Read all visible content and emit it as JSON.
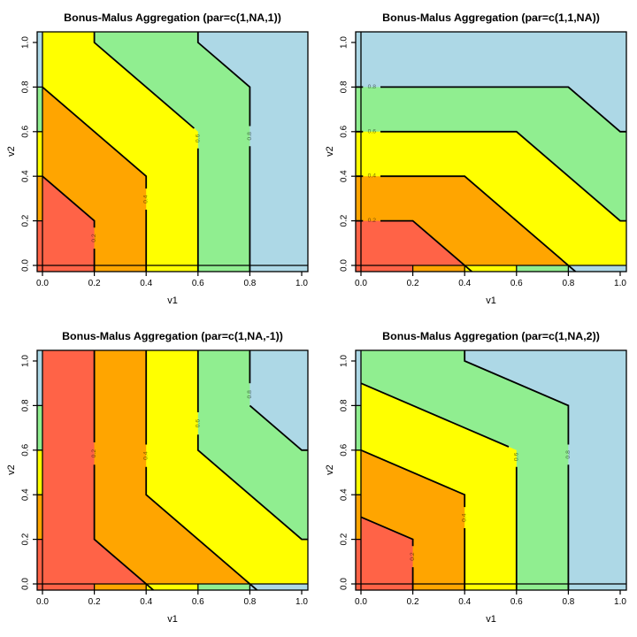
{
  "chart_data": {
    "type": "filled-contour-grid",
    "grid": [
      2,
      2
    ],
    "levels": [
      0.2,
      0.4,
      0.6,
      0.8
    ],
    "colors": {
      "red": "#FF6347",
      "orange": "#FFA500",
      "yellow": "#FFFF00",
      "green": "#90EE90",
      "blue": "#ADD8E6"
    },
    "band_meaning": "aggregated value: <0.2 red, 0.2-0.4 orange, 0.4-0.6 yellow, 0.6-0.8 green, >0.8 blue",
    "axis": {
      "xlabel": "v1",
      "ylabel": "v2",
      "xticks": [
        "0.0",
        "0.2",
        "0.4",
        "0.6",
        "0.8",
        "1.0"
      ],
      "yticks": [
        "0.0",
        "0.2",
        "0.4",
        "0.6",
        "0.8",
        "1.0"
      ],
      "tick_values": [
        0,
        0.2,
        0.4,
        0.6,
        0.8,
        1.0
      ],
      "xlim": [
        0,
        1
      ],
      "ylim": [
        0,
        1
      ]
    },
    "edge_strips": {
      "left_strip_values": "v2",
      "bottom_strip_values": "v1",
      "order": [
        "red",
        "orange",
        "yellow",
        "green",
        "blue"
      ],
      "breaks": [
        -0.1,
        0.2,
        0.4,
        0.6,
        0.8,
        1.1
      ]
    },
    "frame_lines": [
      [
        [
          0,
          -0.1
        ],
        [
          0,
          1.1
        ]
      ],
      [
        [
          -0.1,
          0
        ],
        [
          1.1,
          0
        ]
      ],
      [
        [
          -0.1,
          0.2
        ],
        [
          0,
          0.2
        ]
      ],
      [
        [
          -0.1,
          0.4
        ],
        [
          0,
          0.4
        ]
      ],
      [
        [
          -0.1,
          0.6
        ],
        [
          0,
          0.6
        ]
      ],
      [
        [
          -0.1,
          0.8
        ],
        [
          0,
          0.8
        ]
      ],
      [
        [
          0.2,
          0
        ],
        [
          0.2,
          -0.1
        ]
      ],
      [
        [
          0.4,
          0
        ],
        [
          0.4,
          -0.1
        ]
      ],
      [
        [
          0.6,
          0
        ],
        [
          0.6,
          -0.1
        ]
      ],
      [
        [
          0.8,
          0
        ],
        [
          0.8,
          -0.1
        ]
      ]
    ],
    "panels": [
      {
        "title": "Bonus-Malus Aggregation (par=c(1,NA,1))",
        "par": "c(1,NA,1)",
        "regions": [
          {
            "color": "green",
            "pts": [
              [
                0.6,
                1.1
              ],
              [
                0.6,
                1.0
              ],
              [
                0.8,
                0.8
              ],
              [
                0.8,
                -0.1
              ],
              [
                -0.1,
                -0.1
              ],
              [
                -0.1,
                1.1
              ]
            ]
          },
          {
            "color": "yellow",
            "pts": [
              [
                0.2,
                1.1
              ],
              [
                0.2,
                1.0
              ],
              [
                0.6,
                0.6
              ],
              [
                0.6,
                -0.1
              ],
              [
                -0.1,
                -0.1
              ],
              [
                -0.1,
                1.1
              ]
            ]
          },
          {
            "color": "orange",
            "pts": [
              [
                -0.1,
                0.8
              ],
              [
                0,
                0.8
              ],
              [
                0.4,
                0.4
              ],
              [
                0.4,
                -0.1
              ],
              [
                -0.1,
                -0.1
              ]
            ]
          },
          {
            "color": "red",
            "pts": [
              [
                -0.1,
                0.4
              ],
              [
                0,
                0.4
              ],
              [
                0.2,
                0.2
              ],
              [
                0.2,
                -0.1
              ],
              [
                -0.1,
                -0.1
              ]
            ]
          }
        ],
        "lines": [
          [
            [
              0,
              0.4
            ],
            [
              0.2,
              0.2
            ],
            [
              0.2,
              0.17
            ]
          ],
          [
            [
              0.2,
              0.075
            ],
            [
              0.2,
              -0.1
            ]
          ],
          [
            [
              0,
              0.8
            ],
            [
              0.4,
              0.4
            ],
            [
              0.4,
              0.345
            ]
          ],
          [
            [
              0.4,
              0.25
            ],
            [
              0.4,
              -0.1
            ]
          ],
          [
            [
              0.2,
              1.1
            ],
            [
              0.2,
              1.0
            ],
            [
              0.585,
              0.615
            ]
          ],
          [
            [
              0.6,
              0.525
            ],
            [
              0.6,
              -0.1
            ]
          ],
          [
            [
              0.6,
              1.1
            ],
            [
              0.6,
              1.0
            ],
            [
              0.8,
              0.8
            ],
            [
              0.8,
              0.625
            ]
          ],
          [
            [
              0.8,
              0.535
            ],
            [
              0.8,
              -0.1
            ]
          ]
        ],
        "labels": [
          {
            "t": "0.2",
            "x": 0.2,
            "y": 0.123,
            "vert": true
          },
          {
            "t": "0.4",
            "x": 0.4,
            "y": 0.297,
            "vert": true
          },
          {
            "t": "0.6",
            "x": 0.6,
            "y": 0.57,
            "vert": true
          },
          {
            "t": "0.8",
            "x": 0.8,
            "y": 0.58,
            "vert": true
          }
        ]
      },
      {
        "title": "Bonus-Malus Aggregation (par=c(1,1,NA))",
        "par": "c(1,1,NA)",
        "regions": [
          {
            "color": "green",
            "pts": [
              [
                -0.1,
                0.8
              ],
              [
                0.8,
                0.8
              ],
              [
                1.0,
                0.6
              ],
              [
                1.1,
                0.6
              ],
              [
                1.1,
                -0.1
              ],
              [
                -0.1,
                -0.1
              ]
            ]
          },
          {
            "color": "yellow",
            "pts": [
              [
                -0.1,
                0.6
              ],
              [
                0.6,
                0.6
              ],
              [
                1.0,
                0.2
              ],
              [
                1.1,
                0.2
              ],
              [
                1.1,
                -0.1
              ],
              [
                -0.1,
                -0.1
              ]
            ]
          },
          {
            "color": "orange",
            "pts": [
              [
                -0.1,
                0.4
              ],
              [
                0.4,
                0.4
              ],
              [
                0.9,
                -0.1
              ],
              [
                -0.1,
                -0.1
              ]
            ]
          },
          {
            "color": "red",
            "pts": [
              [
                -0.1,
                0.2
              ],
              [
                0.2,
                0.2
              ],
              [
                0.5,
                -0.1
              ],
              [
                -0.1,
                -0.1
              ]
            ]
          }
        ],
        "lines": [
          [
            [
              -0.1,
              0.2
            ],
            [
              0.008,
              0.2
            ]
          ],
          [
            [
              0.075,
              0.2
            ],
            [
              0.2,
              0.2
            ],
            [
              0.5,
              -0.1
            ]
          ],
          [
            [
              -0.1,
              0.4
            ],
            [
              0.008,
              0.4
            ]
          ],
          [
            [
              0.075,
              0.4
            ],
            [
              0.4,
              0.4
            ],
            [
              0.9,
              -0.1
            ]
          ],
          [
            [
              -0.1,
              0.6
            ],
            [
              0.008,
              0.6
            ]
          ],
          [
            [
              0.075,
              0.6
            ],
            [
              0.6,
              0.6
            ],
            [
              1.0,
              0.2
            ],
            [
              1.1,
              0.2
            ]
          ],
          [
            [
              -0.1,
              0.8
            ],
            [
              0.008,
              0.8
            ]
          ],
          [
            [
              0.075,
              0.8
            ],
            [
              0.8,
              0.8
            ],
            [
              1.0,
              0.6
            ],
            [
              1.1,
              0.6
            ]
          ]
        ],
        "labels": [
          {
            "t": "0.2",
            "x": 0.042,
            "y": 0.2,
            "vert": false
          },
          {
            "t": "0.4",
            "x": 0.042,
            "y": 0.4,
            "vert": false
          },
          {
            "t": "0.6",
            "x": 0.042,
            "y": 0.6,
            "vert": false
          },
          {
            "t": "0.8",
            "x": 0.042,
            "y": 0.8,
            "vert": false
          }
        ]
      },
      {
        "title": "Bonus-Malus Aggregation (par=c(1,NA,-1))",
        "par": "c(1,NA,-1)",
        "regions": [
          {
            "color": "green",
            "pts": [
              [
                -0.1,
                1.1
              ],
              [
                0.8,
                1.1
              ],
              [
                0.8,
                0.8
              ],
              [
                1.0,
                0.6
              ],
              [
                1.1,
                0.6
              ],
              [
                1.1,
                -0.1
              ],
              [
                -0.1,
                -0.1
              ]
            ]
          },
          {
            "color": "yellow",
            "pts": [
              [
                -0.1,
                1.1
              ],
              [
                0.6,
                1.1
              ],
              [
                0.6,
                0.6
              ],
              [
                1.0,
                0.2
              ],
              [
                1.1,
                0.2
              ],
              [
                1.1,
                -0.1
              ],
              [
                -0.1,
                -0.1
              ]
            ]
          },
          {
            "color": "orange",
            "pts": [
              [
                -0.1,
                1.1
              ],
              [
                0.4,
                1.1
              ],
              [
                0.4,
                0.4
              ],
              [
                0.9,
                -0.1
              ],
              [
                -0.1,
                -0.1
              ]
            ]
          },
          {
            "color": "red",
            "pts": [
              [
                -0.1,
                1.1
              ],
              [
                0.2,
                1.1
              ],
              [
                0.2,
                0.2
              ],
              [
                0.5,
                -0.1
              ],
              [
                -0.1,
                -0.1
              ]
            ]
          }
        ],
        "lines": [
          [
            [
              0.2,
              1.1
            ],
            [
              0.2,
              0.635
            ]
          ],
          [
            [
              0.2,
              0.535
            ],
            [
              0.2,
              0.2
            ],
            [
              0.5,
              -0.1
            ]
          ],
          [
            [
              0.4,
              1.1
            ],
            [
              0.4,
              0.625
            ]
          ],
          [
            [
              0.4,
              0.525
            ],
            [
              0.4,
              0.4
            ],
            [
              0.9,
              -0.1
            ]
          ],
          [
            [
              0.6,
              1.1
            ],
            [
              0.6,
              0.77
            ]
          ],
          [
            [
              0.6,
              0.67
            ],
            [
              0.6,
              0.6
            ],
            [
              1.0,
              0.2
            ],
            [
              1.1,
              0.2
            ]
          ],
          [
            [
              0.8,
              1.1
            ],
            [
              0.8,
              0.9
            ]
          ],
          [
            [
              0.8,
              0.8
            ],
            [
              1.0,
              0.6
            ],
            [
              1.1,
              0.6
            ]
          ]
        ],
        "labels": [
          {
            "t": "0.2",
            "x": 0.2,
            "y": 0.585,
            "vert": true
          },
          {
            "t": "0.4",
            "x": 0.4,
            "y": 0.575,
            "vert": true
          },
          {
            "t": "0.6",
            "x": 0.6,
            "y": 0.72,
            "vert": true
          },
          {
            "t": "0.8",
            "x": 0.8,
            "y": 0.85,
            "vert": true
          }
        ]
      },
      {
        "title": "Bonus-Malus Aggregation (par=c(1,NA,2))",
        "par": "c(1,NA,2)",
        "regions": [
          {
            "color": "green",
            "pts": [
              [
                0.4,
                1.1
              ],
              [
                0.4,
                1.0
              ],
              [
                0.8,
                0.8
              ],
              [
                0.8,
                -0.1
              ],
              [
                -0.1,
                -0.1
              ],
              [
                -0.1,
                1.1
              ]
            ]
          },
          {
            "color": "yellow",
            "pts": [
              [
                -0.1,
                0.9
              ],
              [
                0,
                0.9
              ],
              [
                0.6,
                0.6
              ],
              [
                0.6,
                -0.1
              ],
              [
                -0.1,
                -0.1
              ]
            ]
          },
          {
            "color": "orange",
            "pts": [
              [
                -0.1,
                0.6
              ],
              [
                0,
                0.6
              ],
              [
                0.4,
                0.4
              ],
              [
                0.4,
                -0.1
              ],
              [
                -0.1,
                -0.1
              ]
            ]
          },
          {
            "color": "red",
            "pts": [
              [
                -0.1,
                0.3
              ],
              [
                0,
                0.3
              ],
              [
                0.2,
                0.2
              ],
              [
                0.2,
                -0.1
              ],
              [
                -0.1,
                -0.1
              ]
            ]
          }
        ],
        "lines": [
          [
            [
              0,
              0.3
            ],
            [
              0.2,
              0.2
            ],
            [
              0.2,
              0.17
            ]
          ],
          [
            [
              0.2,
              0.075
            ],
            [
              0.2,
              -0.1
            ]
          ],
          [
            [
              0,
              0.6
            ],
            [
              0.4,
              0.4
            ],
            [
              0.4,
              0.345
            ]
          ],
          [
            [
              0.4,
              0.25
            ],
            [
              0.4,
              -0.1
            ]
          ],
          [
            [
              0,
              0.9
            ],
            [
              0.57,
              0.615
            ]
          ],
          [
            [
              0.6,
              0.525
            ],
            [
              0.6,
              -0.1
            ]
          ],
          [
            [
              0.4,
              1.1
            ],
            [
              0.4,
              1.0
            ],
            [
              0.8,
              0.8
            ],
            [
              0.8,
              0.625
            ]
          ],
          [
            [
              0.8,
              0.535
            ],
            [
              0.8,
              -0.1
            ]
          ]
        ],
        "labels": [
          {
            "t": "0.2",
            "x": 0.2,
            "y": 0.123,
            "vert": true
          },
          {
            "t": "0.4",
            "x": 0.4,
            "y": 0.297,
            "vert": true
          },
          {
            "t": "0.6",
            "x": 0.6,
            "y": 0.57,
            "vert": true
          },
          {
            "t": "0.8",
            "x": 0.8,
            "y": 0.58,
            "vert": true
          }
        ]
      }
    ]
  }
}
